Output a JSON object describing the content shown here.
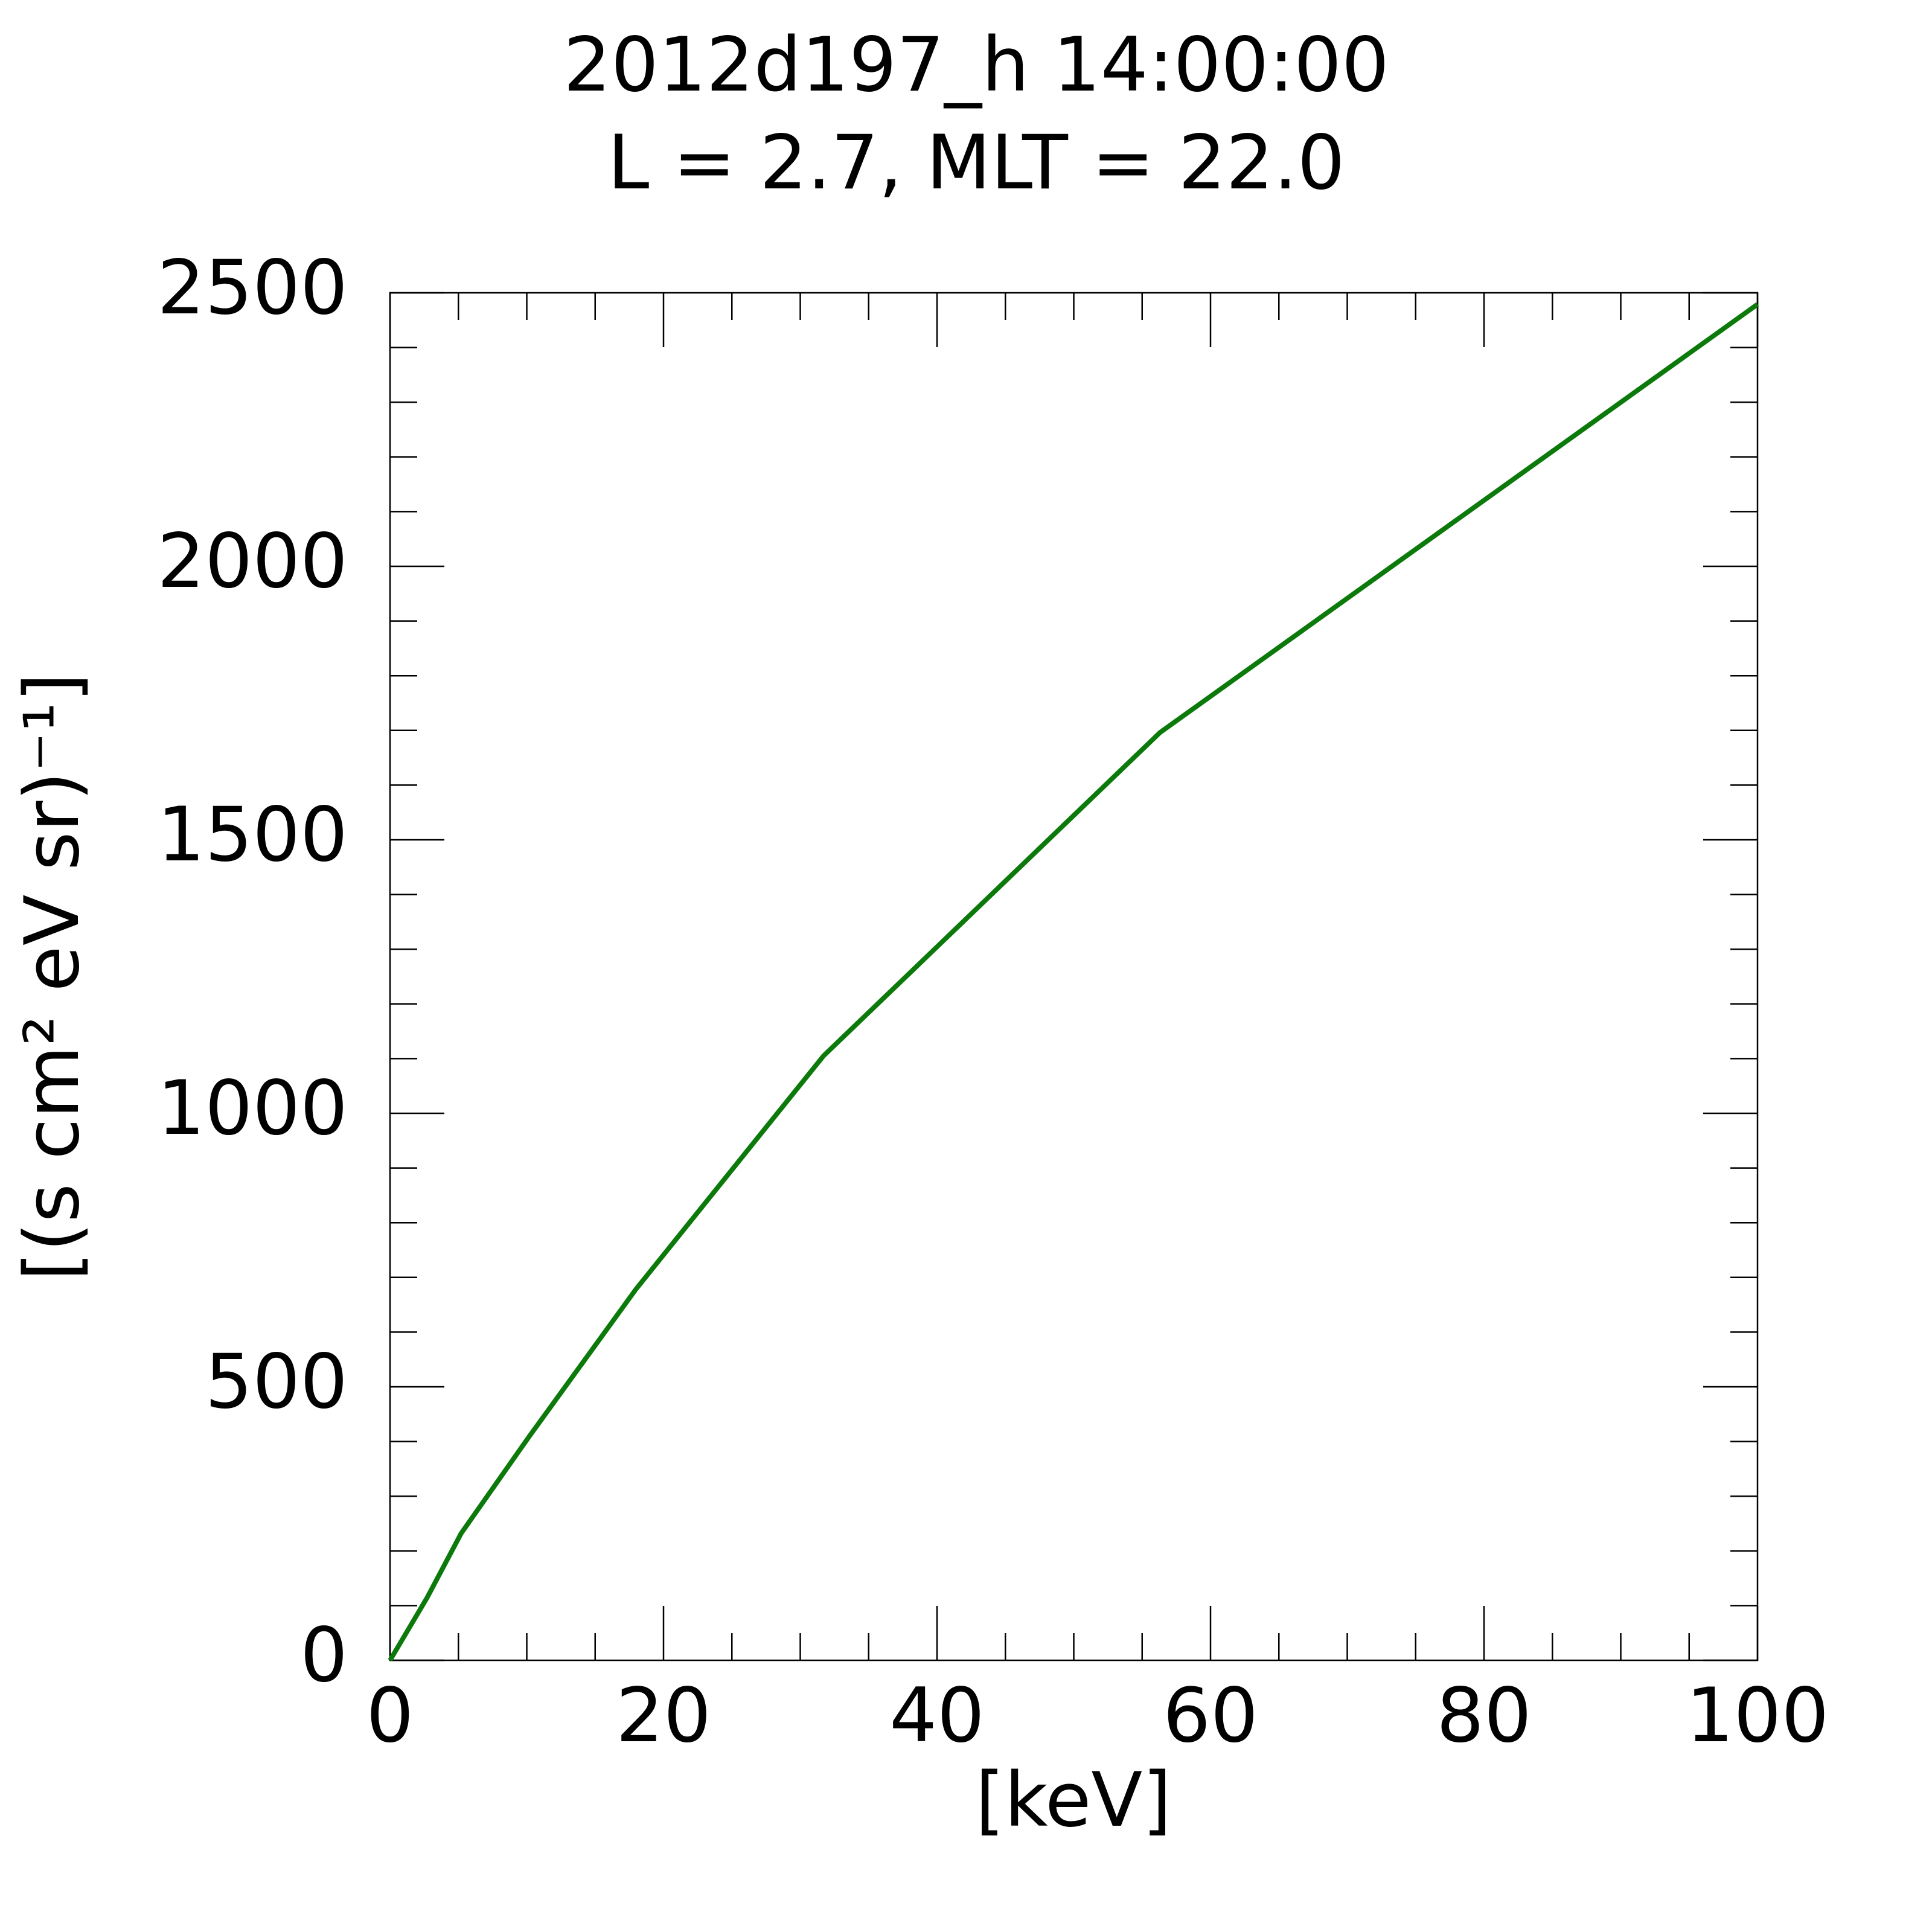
{
  "chart_data": {
    "type": "line",
    "title": "2012d197_h  14:00:00",
    "subtitle": "L = 2.7, MLT = 22.0",
    "xlabel": "[keV]",
    "ylabel": "[(s cm² eV sr)⁻¹]",
    "x": [
      0,
      2.7,
      5.2,
      10.2,
      18,
      31.7,
      56.3,
      100
    ],
    "series": [
      {
        "color": "#0b7a0b",
        "values": [
          0,
          114,
          232,
          410,
          679,
          1105,
          1696,
          2479
        ]
      }
    ],
    "xlim": [
      0,
      100
    ],
    "xticks": [
      0,
      20,
      40,
      60,
      80,
      100
    ],
    "xminorticks": [
      5,
      10,
      15,
      25,
      30,
      35,
      45,
      50,
      55,
      65,
      70,
      75,
      85,
      90,
      95
    ],
    "ylim": [
      0,
      2500
    ],
    "yticks": [
      0,
      500,
      1000,
      1500,
      2000,
      2500
    ],
    "yminorticks": [
      100,
      200,
      300,
      400,
      600,
      700,
      800,
      900,
      1100,
      1200,
      1300,
      1400,
      1600,
      1700,
      1800,
      1900,
      2100,
      2200,
      2300,
      2400
    ],
    "grid": false
  }
}
